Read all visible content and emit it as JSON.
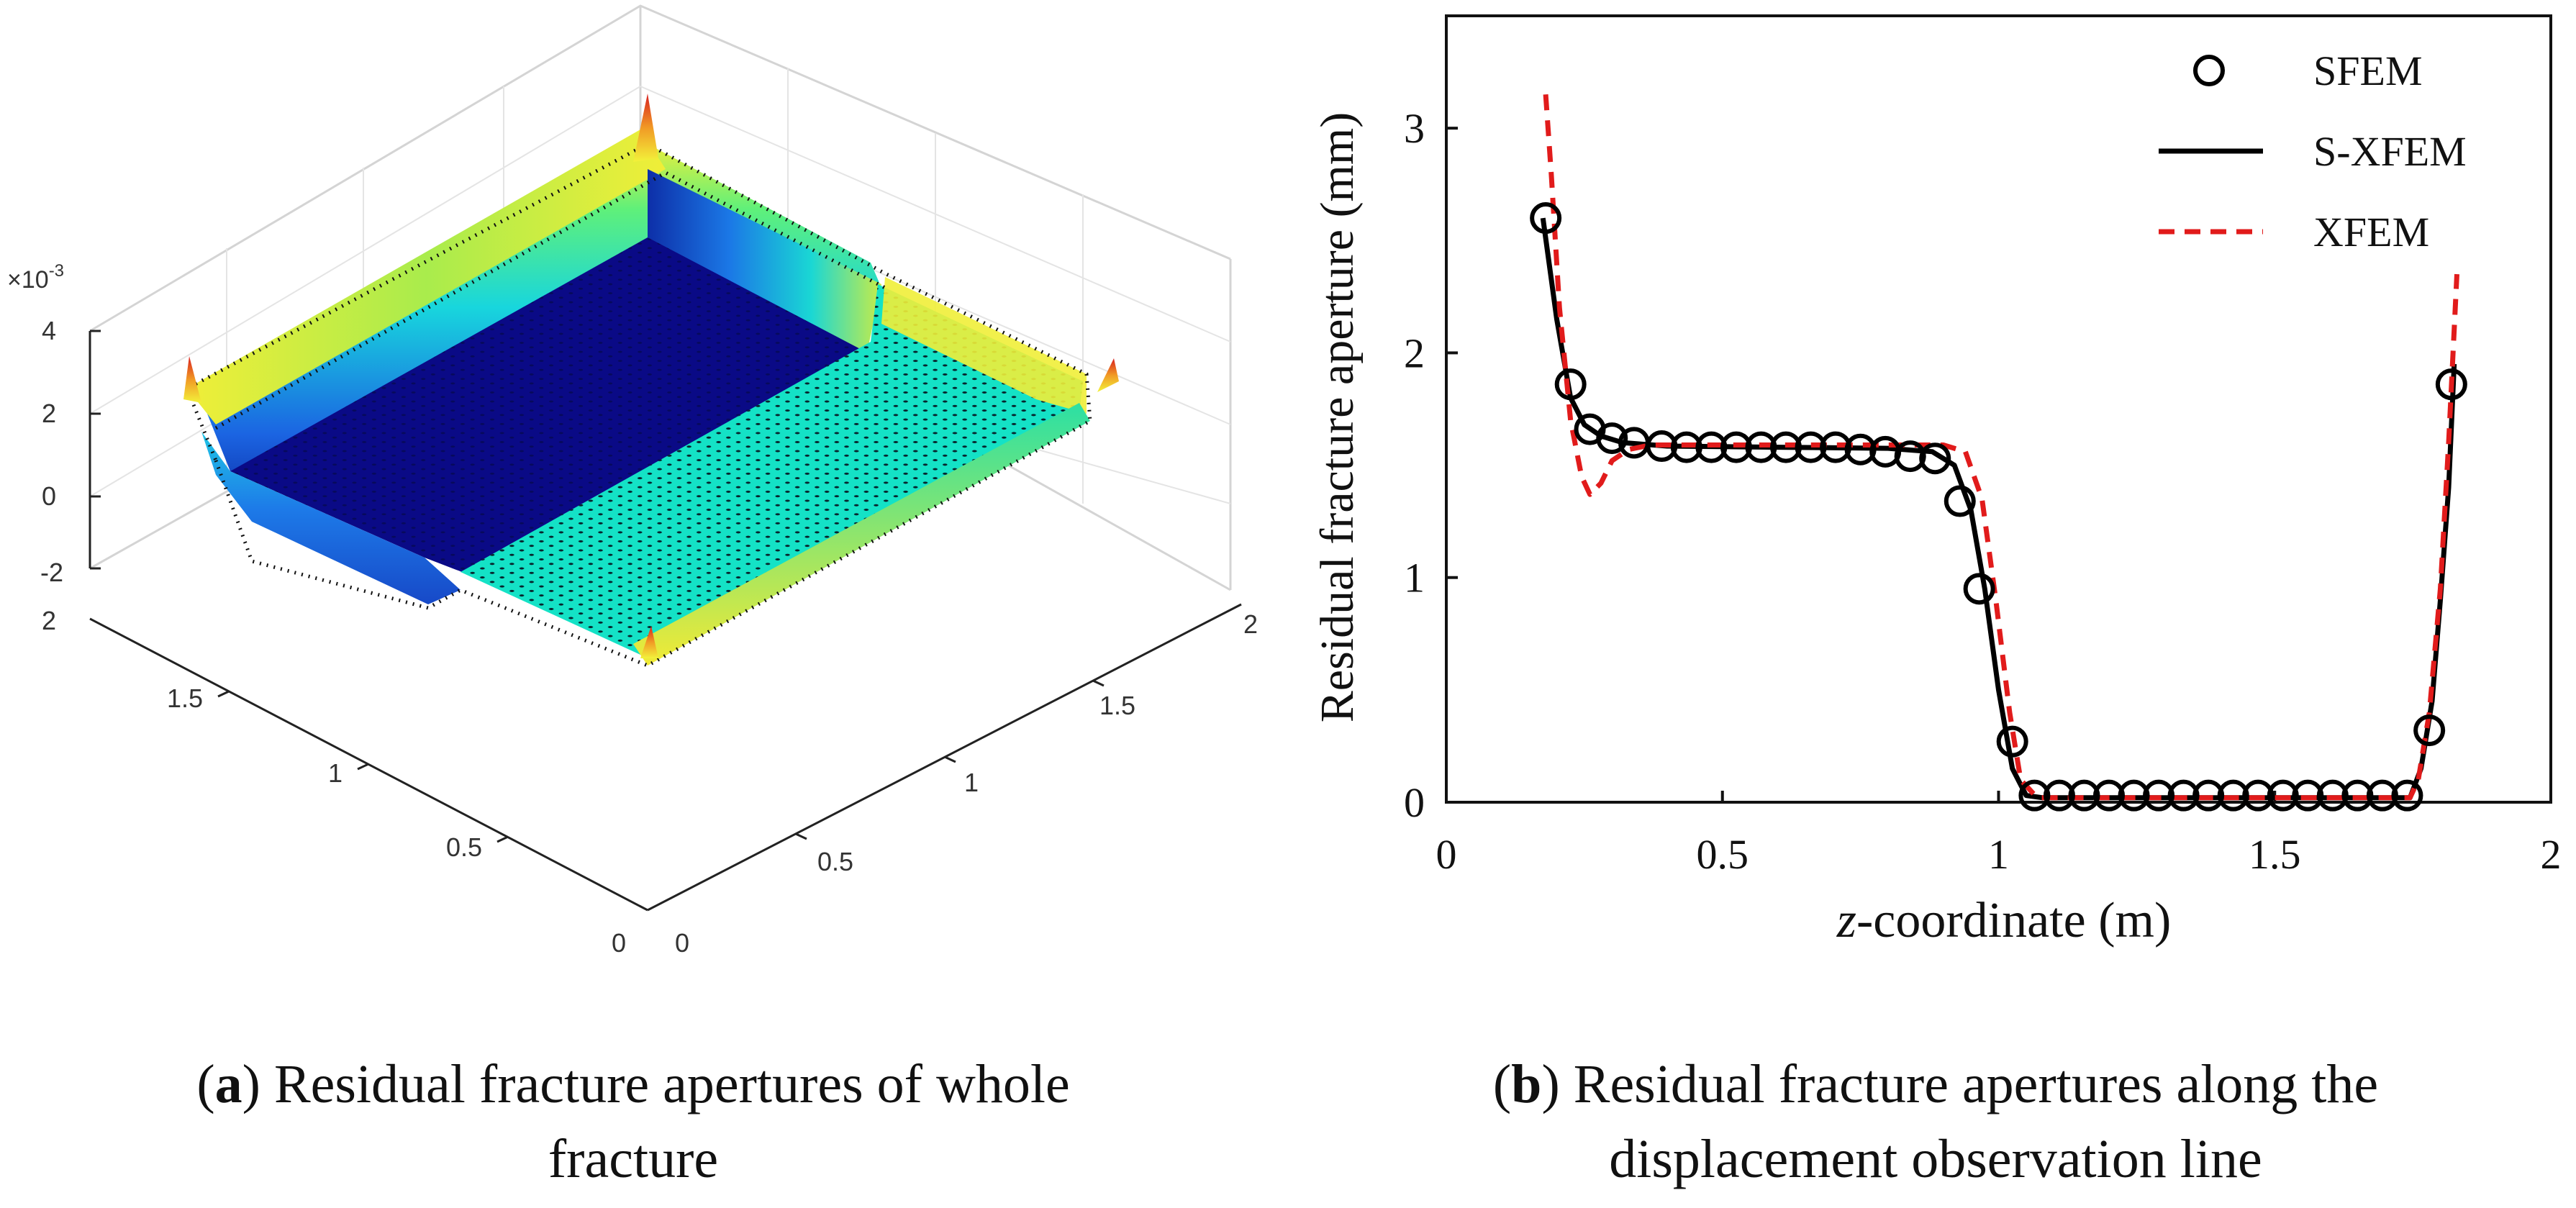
{
  "figure": {
    "colors": {
      "sfem": "#000000",
      "sxfem": "#000000",
      "xfem": "#e11b1b",
      "deep_blue": "#0a0a86",
      "wall_blue": "#1d6fe8",
      "cyan": "#14e2c6",
      "yellow": "#f2f23a",
      "orange": "#f19a25",
      "red": "#d81f1f"
    },
    "panel_a": {
      "caption_letter": "a",
      "caption_line1": "Residual fracture apertures of whole",
      "caption_line2": "fracture",
      "z_exponent": "×10",
      "z_exponent_power": "-3",
      "z_ticks": [
        "4",
        "2",
        "0",
        "-2"
      ],
      "y_ticks": [
        "2",
        "1.5",
        "1",
        "0.5",
        "0"
      ],
      "x_ticks": [
        "0",
        "0.5",
        "1",
        "1.5",
        "2"
      ],
      "surface_icon": "fracture-surface-3d"
    },
    "panel_b": {
      "caption_letter": "b",
      "caption_line1": "Residual fracture apertures along the",
      "caption_line2": "displacement observation line",
      "chart_data": {
        "type": "line",
        "title": "",
        "xlabel_italic": "z",
        "xlabel_rest": "-coordinate (m)",
        "ylabel": "Residual fracture aperture (mm)",
        "xlim": [
          0,
          2
        ],
        "ylim": [
          0,
          3.5
        ],
        "x_ticks": [
          "0",
          "0.5",
          "1",
          "1.5",
          "2"
        ],
        "y_ticks": [
          "0",
          "1",
          "2",
          "3"
        ],
        "legend_position": "top-right",
        "series": [
          {
            "name": "SFEM",
            "style": "circle-markers",
            "x": [
              0.18,
              0.225,
              0.26,
              0.3,
              0.34,
              0.39,
              0.435,
              0.48,
              0.525,
              0.57,
              0.615,
              0.66,
              0.705,
              0.75,
              0.795,
              0.84,
              0.885,
              0.93,
              0.965,
              1.025,
              1.065,
              1.11,
              1.155,
              1.2,
              1.245,
              1.29,
              1.335,
              1.38,
              1.425,
              1.47,
              1.515,
              1.56,
              1.605,
              1.65,
              1.695,
              1.74,
              1.78,
              1.82
            ],
            "y": [
              2.6,
              1.86,
              1.66,
              1.62,
              1.6,
              1.585,
              1.58,
              1.58,
              1.58,
              1.58,
              1.58,
              1.58,
              1.58,
              1.57,
              1.56,
              1.54,
              1.53,
              1.34,
              0.95,
              0.27,
              0.03,
              0.03,
              0.03,
              0.03,
              0.03,
              0.03,
              0.03,
              0.03,
              0.03,
              0.03,
              0.03,
              0.03,
              0.03,
              0.03,
              0.03,
              0.03,
              0.32,
              1.86
            ]
          },
          {
            "name": "S-XFEM",
            "style": "solid",
            "x": [
              0.175,
              0.2,
              0.225,
              0.25,
              0.28,
              0.32,
              0.4,
              0.6,
              0.8,
              0.88,
              0.92,
              0.95,
              0.975,
              1.0,
              1.025,
              1.05,
              1.08,
              1.2,
              1.5,
              1.7,
              1.745,
              1.765,
              1.785,
              1.8,
              1.815,
              1.825
            ],
            "y": [
              2.6,
              2.15,
              1.8,
              1.68,
              1.63,
              1.6,
              1.585,
              1.58,
              1.575,
              1.56,
              1.5,
              1.3,
              0.95,
              0.5,
              0.15,
              0.03,
              0.02,
              0.02,
              0.02,
              0.02,
              0.02,
              0.15,
              0.45,
              0.9,
              1.4,
              1.95
            ]
          },
          {
            "name": "XFEM",
            "style": "dashed",
            "x": [
              0.18,
              0.19,
              0.205,
              0.225,
              0.245,
              0.26,
              0.28,
              0.3,
              0.33,
              0.37,
              0.45,
              0.6,
              0.8,
              0.9,
              0.94,
              0.97,
              0.995,
              1.02,
              1.04,
              1.07,
              1.2,
              1.5,
              1.7,
              1.745,
              1.76,
              1.78,
              1.8,
              1.815,
              1.83
            ],
            "y": [
              3.15,
              2.8,
              2.2,
              1.7,
              1.45,
              1.37,
              1.42,
              1.52,
              1.57,
              1.59,
              1.59,
              1.59,
              1.59,
              1.59,
              1.56,
              1.35,
              0.9,
              0.4,
              0.1,
              0.02,
              0.02,
              0.02,
              0.02,
              0.02,
              0.1,
              0.4,
              0.95,
              1.6,
              2.35
            ]
          }
        ]
      }
    }
  }
}
